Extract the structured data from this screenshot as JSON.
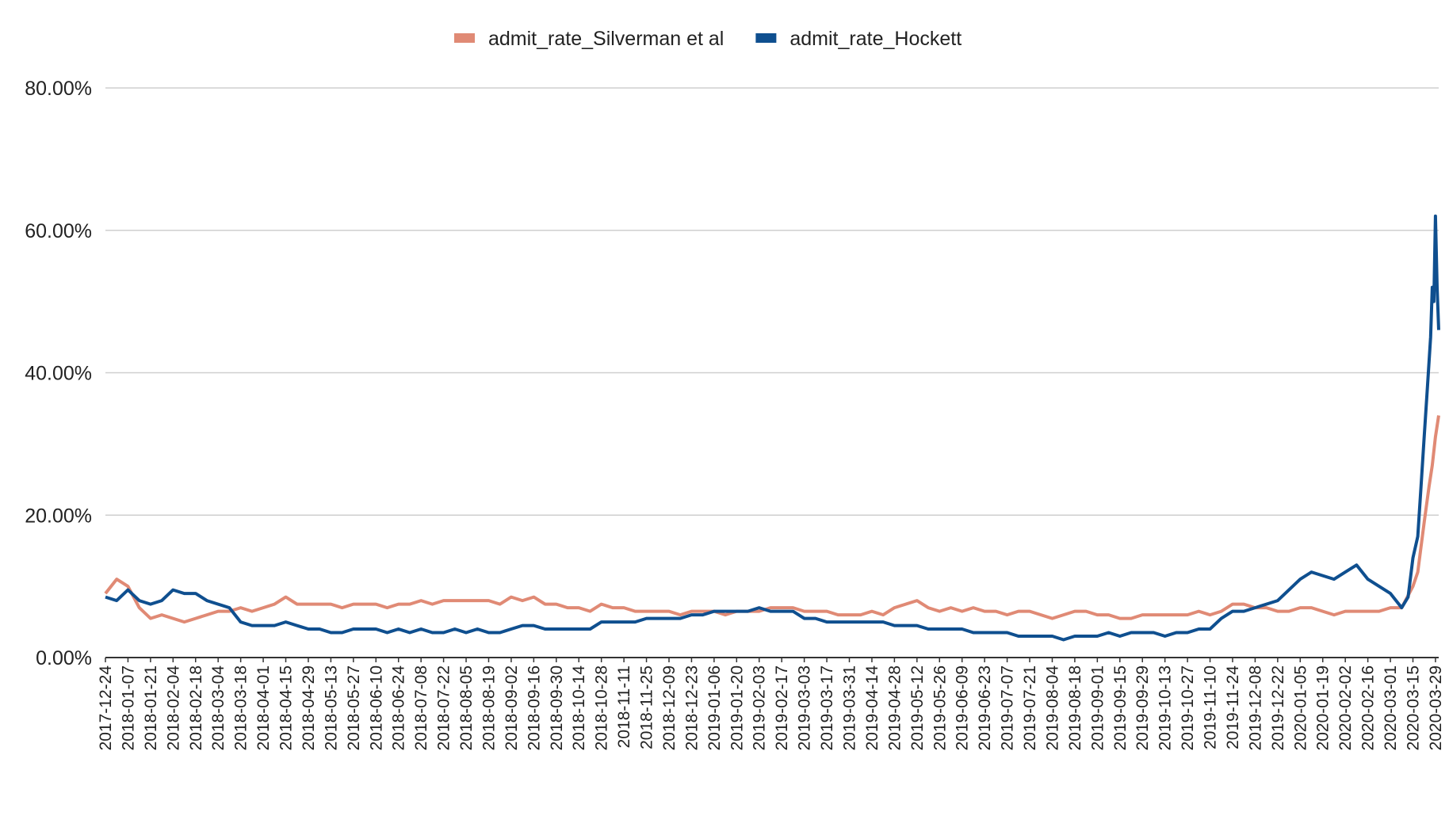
{
  "chart_data": {
    "type": "line",
    "title": "",
    "xlabel": "",
    "ylabel": "",
    "x_start": "2017-12-24",
    "x_end": "2020-03-31",
    "ylim": [
      0,
      0.8
    ],
    "y_ticks": [
      {
        "value": 0.0,
        "label": "0.00%"
      },
      {
        "value": 0.2,
        "label": "20.00%"
      },
      {
        "value": 0.4,
        "label": "40.00%"
      },
      {
        "value": 0.6,
        "label": "60.00%"
      },
      {
        "value": 0.8,
        "label": "80.00%"
      }
    ],
    "x_tick_labels": [
      "2017-12-24",
      "2018-01-07",
      "2018-01-21",
      "2018-02-04",
      "2018-02-18",
      "2018-03-04",
      "2018-03-18",
      "2018-04-01",
      "2018-04-15",
      "2018-04-29",
      "2018-05-13",
      "2018-05-27",
      "2018-06-10",
      "2018-06-24",
      "2018-07-08",
      "2018-07-22",
      "2018-08-05",
      "2018-08-19",
      "2018-09-02",
      "2018-09-16",
      "2018-09-30",
      "2018-10-14",
      "2018-10-28",
      "2018-11-11",
      "2018-11-25",
      "2018-12-09",
      "2018-12-23",
      "2019-01-06",
      "2019-01-20",
      "2019-02-03",
      "2019-02-17",
      "2019-03-03",
      "2019-03-17",
      "2019-03-31",
      "2019-04-14",
      "2019-04-28",
      "2019-05-12",
      "2019-05-26",
      "2019-06-09",
      "2019-06-23",
      "2019-07-07",
      "2019-07-21",
      "2019-08-04",
      "2019-08-18",
      "2019-09-01",
      "2019-09-15",
      "2019-09-29",
      "2019-10-13",
      "2019-10-27",
      "2019-11-10",
      "2019-11-24",
      "2019-12-08",
      "2019-12-22",
      "2020-01-05",
      "2020-01-19",
      "2020-02-02",
      "2020-02-16",
      "2020-03-01",
      "2020-03-15",
      "2020-03-29"
    ],
    "grid": true,
    "legend_position": "top",
    "series": [
      {
        "name": "admit_rate_Silverman et al",
        "color": "#e08a75",
        "points": [
          [
            "2017-12-24",
            0.09
          ],
          [
            "2017-12-31",
            0.11
          ],
          [
            "2018-01-07",
            0.1
          ],
          [
            "2018-01-14",
            0.07
          ],
          [
            "2018-01-21",
            0.055
          ],
          [
            "2018-01-28",
            0.06
          ],
          [
            "2018-02-04",
            0.055
          ],
          [
            "2018-02-11",
            0.05
          ],
          [
            "2018-02-18",
            0.055
          ],
          [
            "2018-02-25",
            0.06
          ],
          [
            "2018-03-04",
            0.065
          ],
          [
            "2018-03-11",
            0.065
          ],
          [
            "2018-03-18",
            0.07
          ],
          [
            "2018-03-25",
            0.065
          ],
          [
            "2018-04-01",
            0.07
          ],
          [
            "2018-04-08",
            0.075
          ],
          [
            "2018-04-15",
            0.085
          ],
          [
            "2018-04-22",
            0.075
          ],
          [
            "2018-04-29",
            0.075
          ],
          [
            "2018-05-06",
            0.075
          ],
          [
            "2018-05-13",
            0.075
          ],
          [
            "2018-05-20",
            0.07
          ],
          [
            "2018-05-27",
            0.075
          ],
          [
            "2018-06-03",
            0.075
          ],
          [
            "2018-06-10",
            0.075
          ],
          [
            "2018-06-17",
            0.07
          ],
          [
            "2018-06-24",
            0.075
          ],
          [
            "2018-07-01",
            0.075
          ],
          [
            "2018-07-08",
            0.08
          ],
          [
            "2018-07-15",
            0.075
          ],
          [
            "2018-07-22",
            0.08
          ],
          [
            "2018-07-29",
            0.08
          ],
          [
            "2018-08-05",
            0.08
          ],
          [
            "2018-08-12",
            0.08
          ],
          [
            "2018-08-19",
            0.08
          ],
          [
            "2018-08-26",
            0.075
          ],
          [
            "2018-09-02",
            0.085
          ],
          [
            "2018-09-09",
            0.08
          ],
          [
            "2018-09-16",
            0.085
          ],
          [
            "2018-09-23",
            0.075
          ],
          [
            "2018-09-30",
            0.075
          ],
          [
            "2018-10-07",
            0.07
          ],
          [
            "2018-10-14",
            0.07
          ],
          [
            "2018-10-21",
            0.065
          ],
          [
            "2018-10-28",
            0.075
          ],
          [
            "2018-11-04",
            0.07
          ],
          [
            "2018-11-11",
            0.07
          ],
          [
            "2018-11-18",
            0.065
          ],
          [
            "2018-11-25",
            0.065
          ],
          [
            "2018-12-02",
            0.065
          ],
          [
            "2018-12-09",
            0.065
          ],
          [
            "2018-12-16",
            0.06
          ],
          [
            "2018-12-23",
            0.065
          ],
          [
            "2018-12-30",
            0.065
          ],
          [
            "2019-01-06",
            0.065
          ],
          [
            "2019-01-13",
            0.06
          ],
          [
            "2019-01-20",
            0.065
          ],
          [
            "2019-01-27",
            0.065
          ],
          [
            "2019-02-03",
            0.065
          ],
          [
            "2019-02-10",
            0.07
          ],
          [
            "2019-02-17",
            0.07
          ],
          [
            "2019-02-24",
            0.07
          ],
          [
            "2019-03-03",
            0.065
          ],
          [
            "2019-03-10",
            0.065
          ],
          [
            "2019-03-17",
            0.065
          ],
          [
            "2019-03-24",
            0.06
          ],
          [
            "2019-03-31",
            0.06
          ],
          [
            "2019-04-07",
            0.06
          ],
          [
            "2019-04-14",
            0.065
          ],
          [
            "2019-04-21",
            0.06
          ],
          [
            "2019-04-28",
            0.07
          ],
          [
            "2019-05-05",
            0.075
          ],
          [
            "2019-05-12",
            0.08
          ],
          [
            "2019-05-19",
            0.07
          ],
          [
            "2019-05-26",
            0.065
          ],
          [
            "2019-06-02",
            0.07
          ],
          [
            "2019-06-09",
            0.065
          ],
          [
            "2019-06-16",
            0.07
          ],
          [
            "2019-06-23",
            0.065
          ],
          [
            "2019-06-30",
            0.065
          ],
          [
            "2019-07-07",
            0.06
          ],
          [
            "2019-07-14",
            0.065
          ],
          [
            "2019-07-21",
            0.065
          ],
          [
            "2019-07-28",
            0.06
          ],
          [
            "2019-08-04",
            0.055
          ],
          [
            "2019-08-11",
            0.06
          ],
          [
            "2019-08-18",
            0.065
          ],
          [
            "2019-08-25",
            0.065
          ],
          [
            "2019-09-01",
            0.06
          ],
          [
            "2019-09-08",
            0.06
          ],
          [
            "2019-09-15",
            0.055
          ],
          [
            "2019-09-22",
            0.055
          ],
          [
            "2019-09-29",
            0.06
          ],
          [
            "2019-10-06",
            0.06
          ],
          [
            "2019-10-13",
            0.06
          ],
          [
            "2019-10-20",
            0.06
          ],
          [
            "2019-10-27",
            0.06
          ],
          [
            "2019-11-03",
            0.065
          ],
          [
            "2019-11-10",
            0.06
          ],
          [
            "2019-11-17",
            0.065
          ],
          [
            "2019-11-24",
            0.075
          ],
          [
            "2019-12-01",
            0.075
          ],
          [
            "2019-12-08",
            0.07
          ],
          [
            "2019-12-15",
            0.07
          ],
          [
            "2019-12-22",
            0.065
          ],
          [
            "2019-12-29",
            0.065
          ],
          [
            "2020-01-05",
            0.07
          ],
          [
            "2020-01-12",
            0.07
          ],
          [
            "2020-01-19",
            0.065
          ],
          [
            "2020-01-26",
            0.06
          ],
          [
            "2020-02-02",
            0.065
          ],
          [
            "2020-02-09",
            0.065
          ],
          [
            "2020-02-16",
            0.065
          ],
          [
            "2020-02-23",
            0.065
          ],
          [
            "2020-03-01",
            0.07
          ],
          [
            "2020-03-08",
            0.07
          ],
          [
            "2020-03-15",
            0.1
          ],
          [
            "2020-03-18",
            0.12
          ],
          [
            "2020-03-22",
            0.19
          ],
          [
            "2020-03-25",
            0.24
          ],
          [
            "2020-03-27",
            0.27
          ],
          [
            "2020-03-29",
            0.31
          ],
          [
            "2020-03-31",
            0.34
          ]
        ]
      },
      {
        "name": "admit_rate_Hockett",
        "color": "#0f4f8f",
        "points": [
          [
            "2017-12-24",
            0.085
          ],
          [
            "2017-12-31",
            0.08
          ],
          [
            "2018-01-07",
            0.095
          ],
          [
            "2018-01-14",
            0.08
          ],
          [
            "2018-01-21",
            0.075
          ],
          [
            "2018-01-28",
            0.08
          ],
          [
            "2018-02-04",
            0.095
          ],
          [
            "2018-02-11",
            0.09
          ],
          [
            "2018-02-18",
            0.09
          ],
          [
            "2018-02-25",
            0.08
          ],
          [
            "2018-03-04",
            0.075
          ],
          [
            "2018-03-11",
            0.07
          ],
          [
            "2018-03-18",
            0.05
          ],
          [
            "2018-03-25",
            0.045
          ],
          [
            "2018-04-01",
            0.045
          ],
          [
            "2018-04-08",
            0.045
          ],
          [
            "2018-04-15",
            0.05
          ],
          [
            "2018-04-22",
            0.045
          ],
          [
            "2018-04-29",
            0.04
          ],
          [
            "2018-05-06",
            0.04
          ],
          [
            "2018-05-13",
            0.035
          ],
          [
            "2018-05-20",
            0.035
          ],
          [
            "2018-05-27",
            0.04
          ],
          [
            "2018-06-03",
            0.04
          ],
          [
            "2018-06-10",
            0.04
          ],
          [
            "2018-06-17",
            0.035
          ],
          [
            "2018-06-24",
            0.04
          ],
          [
            "2018-07-01",
            0.035
          ],
          [
            "2018-07-08",
            0.04
          ],
          [
            "2018-07-15",
            0.035
          ],
          [
            "2018-07-22",
            0.035
          ],
          [
            "2018-07-29",
            0.04
          ],
          [
            "2018-08-05",
            0.035
          ],
          [
            "2018-08-12",
            0.04
          ],
          [
            "2018-08-19",
            0.035
          ],
          [
            "2018-08-26",
            0.035
          ],
          [
            "2018-09-02",
            0.04
          ],
          [
            "2018-09-09",
            0.045
          ],
          [
            "2018-09-16",
            0.045
          ],
          [
            "2018-09-23",
            0.04
          ],
          [
            "2018-09-30",
            0.04
          ],
          [
            "2018-10-07",
            0.04
          ],
          [
            "2018-10-14",
            0.04
          ],
          [
            "2018-10-21",
            0.04
          ],
          [
            "2018-10-28",
            0.05
          ],
          [
            "2018-11-04",
            0.05
          ],
          [
            "2018-11-11",
            0.05
          ],
          [
            "2018-11-18",
            0.05
          ],
          [
            "2018-11-25",
            0.055
          ],
          [
            "2018-12-02",
            0.055
          ],
          [
            "2018-12-09",
            0.055
          ],
          [
            "2018-12-16",
            0.055
          ],
          [
            "2018-12-23",
            0.06
          ],
          [
            "2018-12-30",
            0.06
          ],
          [
            "2019-01-06",
            0.065
          ],
          [
            "2019-01-13",
            0.065
          ],
          [
            "2019-01-20",
            0.065
          ],
          [
            "2019-01-27",
            0.065
          ],
          [
            "2019-02-03",
            0.07
          ],
          [
            "2019-02-10",
            0.065
          ],
          [
            "2019-02-17",
            0.065
          ],
          [
            "2019-02-24",
            0.065
          ],
          [
            "2019-03-03",
            0.055
          ],
          [
            "2019-03-10",
            0.055
          ],
          [
            "2019-03-17",
            0.05
          ],
          [
            "2019-03-24",
            0.05
          ],
          [
            "2019-03-31",
            0.05
          ],
          [
            "2019-04-07",
            0.05
          ],
          [
            "2019-04-14",
            0.05
          ],
          [
            "2019-04-21",
            0.05
          ],
          [
            "2019-04-28",
            0.045
          ],
          [
            "2019-05-05",
            0.045
          ],
          [
            "2019-05-12",
            0.045
          ],
          [
            "2019-05-19",
            0.04
          ],
          [
            "2019-05-26",
            0.04
          ],
          [
            "2019-06-02",
            0.04
          ],
          [
            "2019-06-09",
            0.04
          ],
          [
            "2019-06-16",
            0.035
          ],
          [
            "2019-06-23",
            0.035
          ],
          [
            "2019-06-30",
            0.035
          ],
          [
            "2019-07-07",
            0.035
          ],
          [
            "2019-07-14",
            0.03
          ],
          [
            "2019-07-21",
            0.03
          ],
          [
            "2019-07-28",
            0.03
          ],
          [
            "2019-08-04",
            0.03
          ],
          [
            "2019-08-11",
            0.025
          ],
          [
            "2019-08-18",
            0.03
          ],
          [
            "2019-08-25",
            0.03
          ],
          [
            "2019-09-01",
            0.03
          ],
          [
            "2019-09-08",
            0.035
          ],
          [
            "2019-09-15",
            0.03
          ],
          [
            "2019-09-22",
            0.035
          ],
          [
            "2019-09-29",
            0.035
          ],
          [
            "2019-10-06",
            0.035
          ],
          [
            "2019-10-13",
            0.03
          ],
          [
            "2019-10-20",
            0.035
          ],
          [
            "2019-10-27",
            0.035
          ],
          [
            "2019-11-03",
            0.04
          ],
          [
            "2019-11-10",
            0.04
          ],
          [
            "2019-11-17",
            0.055
          ],
          [
            "2019-11-24",
            0.065
          ],
          [
            "2019-12-01",
            0.065
          ],
          [
            "2019-12-08",
            0.07
          ],
          [
            "2019-12-15",
            0.075
          ],
          [
            "2019-12-22",
            0.08
          ],
          [
            "2019-12-29",
            0.095
          ],
          [
            "2020-01-05",
            0.11
          ],
          [
            "2020-01-12",
            0.12
          ],
          [
            "2020-01-19",
            0.115
          ],
          [
            "2020-01-26",
            0.11
          ],
          [
            "2020-02-02",
            0.12
          ],
          [
            "2020-02-09",
            0.13
          ],
          [
            "2020-02-16",
            0.11
          ],
          [
            "2020-02-23",
            0.1
          ],
          [
            "2020-03-01",
            0.09
          ],
          [
            "2020-03-08",
            0.07
          ],
          [
            "2020-03-12",
            0.085
          ],
          [
            "2020-03-15",
            0.14
          ],
          [
            "2020-03-18",
            0.17
          ],
          [
            "2020-03-20",
            0.24
          ],
          [
            "2020-03-22",
            0.31
          ],
          [
            "2020-03-24",
            0.38
          ],
          [
            "2020-03-26",
            0.45
          ],
          [
            "2020-03-27",
            0.52
          ],
          [
            "2020-03-28",
            0.5
          ],
          [
            "2020-03-29",
            0.62
          ],
          [
            "2020-03-30",
            0.52
          ],
          [
            "2020-03-31",
            0.46
          ]
        ]
      }
    ]
  }
}
